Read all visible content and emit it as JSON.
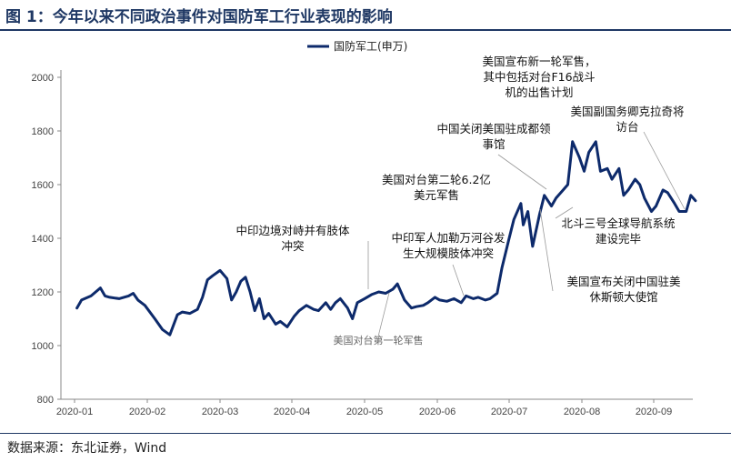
{
  "title": "图 1：今年以来不同政治事件对国防军工行业表现的影响",
  "source": "数据来源：东北证券，Wind",
  "chart_data": {
    "type": "line",
    "title": "",
    "xlabel": "",
    "ylabel": "",
    "ylim": [
      800,
      2000
    ],
    "yticks": [
      800,
      1000,
      1200,
      1400,
      1600,
      1800,
      2000
    ],
    "xticks": [
      "2020-01",
      "2020-02",
      "2020-03",
      "2020-04",
      "2020-05",
      "2020-06",
      "2020-07",
      "2020-08",
      "2020-09"
    ],
    "xtick_dates": [
      "2020-01-01",
      "2020-02-01",
      "2020-03-01",
      "2020-04-01",
      "2020-05-01",
      "2020-06-01",
      "2020-07-01",
      "2020-08-01",
      "2020-09-01"
    ],
    "grid": false,
    "legend_position": "top",
    "series": [
      {
        "name": "国防军工(申万)",
        "color": "#0d2a6b",
        "x": [
          "2020-01-02",
          "2020-01-04",
          "2020-01-08",
          "2020-01-12",
          "2020-01-14",
          "2020-01-16",
          "2020-01-20",
          "2020-01-24",
          "2020-01-26",
          "2020-01-28",
          "2020-01-31",
          "2020-02-04",
          "2020-02-07",
          "2020-02-10",
          "2020-02-13",
          "2020-02-15",
          "2020-02-18",
          "2020-02-21",
          "2020-02-23",
          "2020-02-25",
          "2020-02-27",
          "2020-03-01",
          "2020-03-04",
          "2020-03-06",
          "2020-03-08",
          "2020-03-10",
          "2020-03-12",
          "2020-03-14",
          "2020-03-16",
          "2020-03-18",
          "2020-03-20",
          "2020-03-22",
          "2020-03-25",
          "2020-03-27",
          "2020-03-30",
          "2020-04-02",
          "2020-04-04",
          "2020-04-07",
          "2020-04-10",
          "2020-04-12",
          "2020-04-15",
          "2020-04-17",
          "2020-04-19",
          "2020-04-21",
          "2020-04-24",
          "2020-04-26",
          "2020-04-28",
          "2020-05-01",
          "2020-05-04",
          "2020-05-07",
          "2020-05-10",
          "2020-05-13",
          "2020-05-15",
          "2020-05-18",
          "2020-05-21",
          "2020-05-23",
          "2020-05-26",
          "2020-05-28",
          "2020-05-31",
          "2020-06-02",
          "2020-06-05",
          "2020-06-08",
          "2020-06-11",
          "2020-06-13",
          "2020-06-16",
          "2020-06-18",
          "2020-06-21",
          "2020-06-23",
          "2020-06-26",
          "2020-06-28",
          "2020-07-01",
          "2020-07-03",
          "2020-07-06",
          "2020-07-07",
          "2020-07-09",
          "2020-07-11",
          "2020-07-14",
          "2020-07-16",
          "2020-07-19",
          "2020-07-21",
          "2020-07-24",
          "2020-07-26",
          "2020-07-28",
          "2020-07-31",
          "2020-08-02",
          "2020-08-04",
          "2020-08-07",
          "2020-08-09",
          "2020-08-12",
          "2020-08-14",
          "2020-08-17",
          "2020-08-19",
          "2020-08-21",
          "2020-08-24",
          "2020-08-26",
          "2020-08-28",
          "2020-08-31",
          "2020-09-02",
          "2020-09-05",
          "2020-09-07",
          "2020-09-10",
          "2020-09-12",
          "2020-09-15",
          "2020-09-17",
          "2020-09-19"
        ],
        "values": [
          1140,
          1170,
          1185,
          1215,
          1185,
          1180,
          1175,
          1185,
          1195,
          1170,
          1150,
          1100,
          1060,
          1040,
          1115,
          1125,
          1120,
          1135,
          1180,
          1245,
          1260,
          1280,
          1250,
          1170,
          1200,
          1240,
          1255,
          1200,
          1130,
          1175,
          1100,
          1120,
          1080,
          1090,
          1070,
          1110,
          1130,
          1150,
          1135,
          1130,
          1160,
          1135,
          1160,
          1175,
          1140,
          1100,
          1160,
          1175,
          1190,
          1200,
          1195,
          1210,
          1230,
          1170,
          1140,
          1145,
          1150,
          1160,
          1180,
          1170,
          1165,
          1175,
          1160,
          1185,
          1175,
          1180,
          1170,
          1175,
          1195,
          1290,
          1400,
          1470,
          1530,
          1450,
          1500,
          1370,
          1490,
          1560,
          1520,
          1550,
          1580,
          1600,
          1760,
          1700,
          1650,
          1720,
          1760,
          1650,
          1660,
          1620,
          1660,
          1560,
          1580,
          1620,
          1600,
          1550,
          1500,
          1520,
          1580,
          1570,
          1530,
          1500,
          1500,
          1560,
          1540
        ]
      }
    ],
    "annotations": [
      {
        "text": "美国宣布新一轮军售，其中包括对台F16战斗机的出售计划",
        "lines": [
          "美国宣布新一轮军售，",
          "其中包括对台F16战斗",
          "机的出售计划"
        ]
      },
      {
        "text": "美国副国务卿克拉奇将访台",
        "lines": [
          "美国副国务卿克拉奇将",
          "访台"
        ]
      },
      {
        "text": "中国关闭美国驻成都领事馆",
        "lines": [
          "中国关闭美国驻成都领",
          "事馆"
        ]
      },
      {
        "text": "美国对台第二轮6.2亿美元军售",
        "lines": [
          "美国对台第二轮6.2亿",
          "美元军售"
        ]
      },
      {
        "text": "中印边境对峙并有肢体冲突",
        "lines": [
          "中印边境对峙并有肢体",
          "冲突"
        ]
      },
      {
        "text": "中印军人加勒万河谷发生大规模肢体冲突",
        "lines": [
          "中印军人加勒万河谷发",
          "生大规模肢体冲突"
        ]
      },
      {
        "text": "北斗三号全球导航系统建设完毕",
        "lines": [
          "北斗三号全球导航系统",
          "建设完毕"
        ]
      },
      {
        "text": "美国宣布关闭中国驻美休斯顿大使馆",
        "lines": [
          "美国宣布关闭中国驻美",
          "休斯顿大使馆"
        ]
      },
      {
        "text": "美国对台第一轮军售",
        "lines": [
          "美国对台第一轮军售"
        ],
        "style": "light"
      }
    ]
  }
}
